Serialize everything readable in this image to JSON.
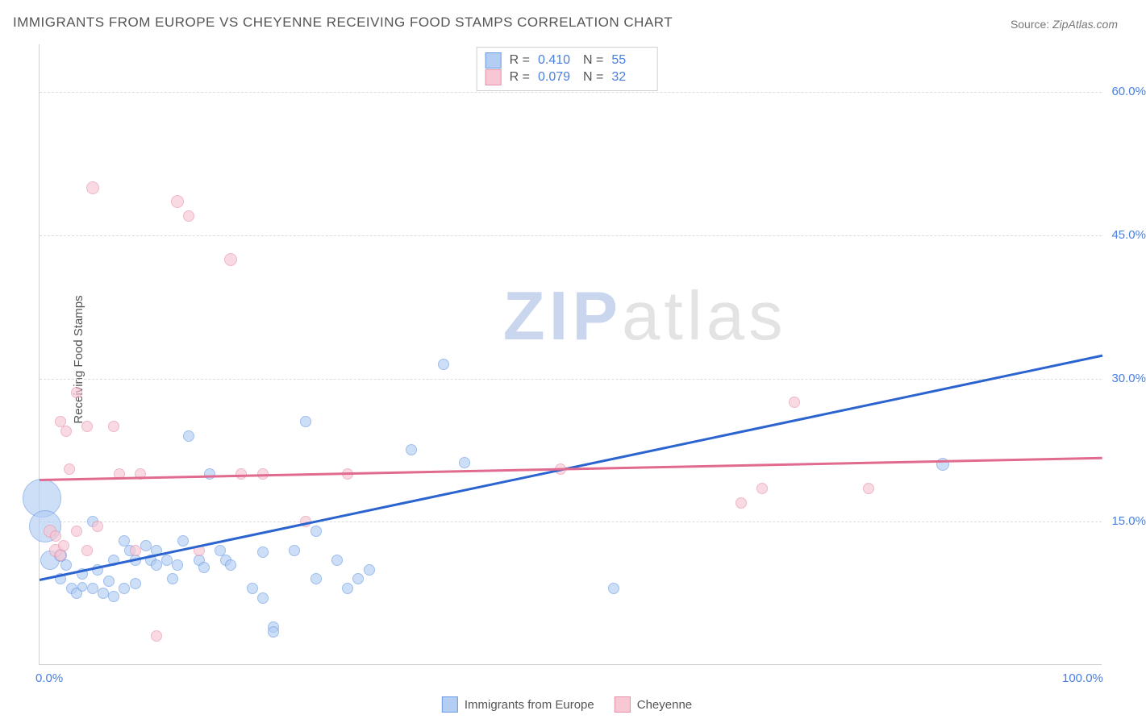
{
  "title": "IMMIGRANTS FROM EUROPE VS CHEYENNE RECEIVING FOOD STAMPS CORRELATION CHART",
  "source_label": "Source: ",
  "source_value": "ZipAtlas.com",
  "ylabel": "Receiving Food Stamps",
  "watermark": {
    "part1": "ZIP",
    "part2": "atlas"
  },
  "chart": {
    "type": "scatter",
    "xlim": [
      0,
      100
    ],
    "ylim": [
      0,
      65
    ],
    "x_ticks": [
      {
        "value": 0,
        "label": "0.0%"
      },
      {
        "value": 100,
        "label": "100.0%"
      }
    ],
    "y_ticks": [
      {
        "value": 15,
        "label": "15.0%"
      },
      {
        "value": 30,
        "label": "30.0%"
      },
      {
        "value": 45,
        "label": "45.0%"
      },
      {
        "value": 60,
        "label": "60.0%"
      }
    ],
    "grid_color": "#dcdcdc",
    "background_color": "#ffffff",
    "series": [
      {
        "id": "europe",
        "label": "Immigrants from Europe",
        "fill": "#b3cef2",
        "stroke": "#6d9be6",
        "fill_opacity": 0.65,
        "R_label": "R =",
        "R_value": "0.410",
        "N_label": "N =",
        "N_value": "55",
        "regression": {
          "x1": 0,
          "y1": 9,
          "x2": 100,
          "y2": 32.5,
          "color": "#2b63cf",
          "width": 2.5
        },
        "points": [
          {
            "x": 0.2,
            "y": 17.5,
            "r": 24
          },
          {
            "x": 0.5,
            "y": 14.5,
            "r": 20
          },
          {
            "x": 1,
            "y": 11,
            "r": 12
          },
          {
            "x": 2,
            "y": 11.5,
            "r": 8
          },
          {
            "x": 2.5,
            "y": 10.5,
            "r": 7
          },
          {
            "x": 2,
            "y": 9,
            "r": 7
          },
          {
            "x": 3,
            "y": 8,
            "r": 7
          },
          {
            "x": 3.5,
            "y": 7.5,
            "r": 7
          },
          {
            "x": 4,
            "y": 8.2,
            "r": 6
          },
          {
            "x": 4,
            "y": 9.5,
            "r": 7
          },
          {
            "x": 5,
            "y": 15,
            "r": 7
          },
          {
            "x": 5,
            "y": 8,
            "r": 7
          },
          {
            "x": 5.5,
            "y": 10,
            "r": 7
          },
          {
            "x": 6,
            "y": 7.5,
            "r": 7
          },
          {
            "x": 6.5,
            "y": 8.8,
            "r": 7
          },
          {
            "x": 7,
            "y": 7.2,
            "r": 7
          },
          {
            "x": 7,
            "y": 11,
            "r": 7
          },
          {
            "x": 8,
            "y": 8,
            "r": 7
          },
          {
            "x": 8,
            "y": 13,
            "r": 7
          },
          {
            "x": 8.5,
            "y": 12,
            "r": 7
          },
          {
            "x": 9,
            "y": 11,
            "r": 7
          },
          {
            "x": 9,
            "y": 8.5,
            "r": 7
          },
          {
            "x": 10,
            "y": 12.5,
            "r": 7
          },
          {
            "x": 10.5,
            "y": 11,
            "r": 7
          },
          {
            "x": 11,
            "y": 12,
            "r": 7
          },
          {
            "x": 11,
            "y": 10.5,
            "r": 7
          },
          {
            "x": 12,
            "y": 11,
            "r": 7
          },
          {
            "x": 12.5,
            "y": 9,
            "r": 7
          },
          {
            "x": 13,
            "y": 10.5,
            "r": 7
          },
          {
            "x": 13.5,
            "y": 13,
            "r": 7
          },
          {
            "x": 14,
            "y": 24,
            "r": 7
          },
          {
            "x": 15,
            "y": 11,
            "r": 7
          },
          {
            "x": 15.5,
            "y": 10.2,
            "r": 7
          },
          {
            "x": 16,
            "y": 20,
            "r": 7
          },
          {
            "x": 17,
            "y": 12,
            "r": 7
          },
          {
            "x": 17.5,
            "y": 11,
            "r": 7
          },
          {
            "x": 18,
            "y": 10.5,
            "r": 7
          },
          {
            "x": 20,
            "y": 8,
            "r": 7
          },
          {
            "x": 21,
            "y": 7,
            "r": 7
          },
          {
            "x": 21,
            "y": 11.8,
            "r": 7
          },
          {
            "x": 22,
            "y": 4,
            "r": 7
          },
          {
            "x": 22,
            "y": 3.5,
            "r": 7
          },
          {
            "x": 24,
            "y": 12,
            "r": 7
          },
          {
            "x": 25,
            "y": 25.5,
            "r": 7
          },
          {
            "x": 26,
            "y": 9,
            "r": 7
          },
          {
            "x": 26,
            "y": 14,
            "r": 7
          },
          {
            "x": 28,
            "y": 11,
            "r": 7
          },
          {
            "x": 29,
            "y": 8,
            "r": 7
          },
          {
            "x": 30,
            "y": 9,
            "r": 7
          },
          {
            "x": 31,
            "y": 10,
            "r": 7
          },
          {
            "x": 35,
            "y": 22.5,
            "r": 7
          },
          {
            "x": 38,
            "y": 31.5,
            "r": 7
          },
          {
            "x": 40,
            "y": 21.2,
            "r": 7
          },
          {
            "x": 54,
            "y": 8,
            "r": 7
          },
          {
            "x": 85,
            "y": 21,
            "r": 8
          }
        ]
      },
      {
        "id": "cheyenne",
        "label": "Cheyenne",
        "fill": "#f7c7d4",
        "stroke": "#e592ab",
        "fill_opacity": 0.65,
        "R_label": "R =",
        "R_value": "0.079",
        "N_label": "N =",
        "N_value": "32",
        "regression": {
          "x1": 0,
          "y1": 19.5,
          "x2": 100,
          "y2": 21.8,
          "color": "#e06b8f",
          "width": 2.5
        },
        "points": [
          {
            "x": 1,
            "y": 14,
            "r": 8
          },
          {
            "x": 1.5,
            "y": 12,
            "r": 8
          },
          {
            "x": 1.5,
            "y": 13.5,
            "r": 7
          },
          {
            "x": 2,
            "y": 11.5,
            "r": 7
          },
          {
            "x": 2,
            "y": 25.5,
            "r": 7
          },
          {
            "x": 2.5,
            "y": 24.5,
            "r": 7
          },
          {
            "x": 2.3,
            "y": 12.5,
            "r": 7
          },
          {
            "x": 2.8,
            "y": 20.5,
            "r": 7
          },
          {
            "x": 3.5,
            "y": 14,
            "r": 7
          },
          {
            "x": 3.5,
            "y": 28.5,
            "r": 7
          },
          {
            "x": 4.5,
            "y": 12,
            "r": 7
          },
          {
            "x": 4.5,
            "y": 25,
            "r": 7
          },
          {
            "x": 5,
            "y": 50,
            "r": 8
          },
          {
            "x": 5.5,
            "y": 14.5,
            "r": 7
          },
          {
            "x": 7,
            "y": 25,
            "r": 7
          },
          {
            "x": 7.5,
            "y": 20,
            "r": 7
          },
          {
            "x": 9,
            "y": 12,
            "r": 7
          },
          {
            "x": 9.5,
            "y": 20,
            "r": 7
          },
          {
            "x": 11,
            "y": 3,
            "r": 7
          },
          {
            "x": 13,
            "y": 48.5,
            "r": 8
          },
          {
            "x": 14,
            "y": 47,
            "r": 7
          },
          {
            "x": 15,
            "y": 12,
            "r": 7
          },
          {
            "x": 18,
            "y": 42.5,
            "r": 8
          },
          {
            "x": 19,
            "y": 20,
            "r": 7
          },
          {
            "x": 21,
            "y": 20,
            "r": 7
          },
          {
            "x": 25,
            "y": 15,
            "r": 7
          },
          {
            "x": 29,
            "y": 20,
            "r": 7
          },
          {
            "x": 49,
            "y": 20.5,
            "r": 7
          },
          {
            "x": 66,
            "y": 17,
            "r": 7
          },
          {
            "x": 68,
            "y": 18.5,
            "r": 7
          },
          {
            "x": 71,
            "y": 27.5,
            "r": 7
          },
          {
            "x": 78,
            "y": 18.5,
            "r": 7
          }
        ]
      }
    ]
  }
}
